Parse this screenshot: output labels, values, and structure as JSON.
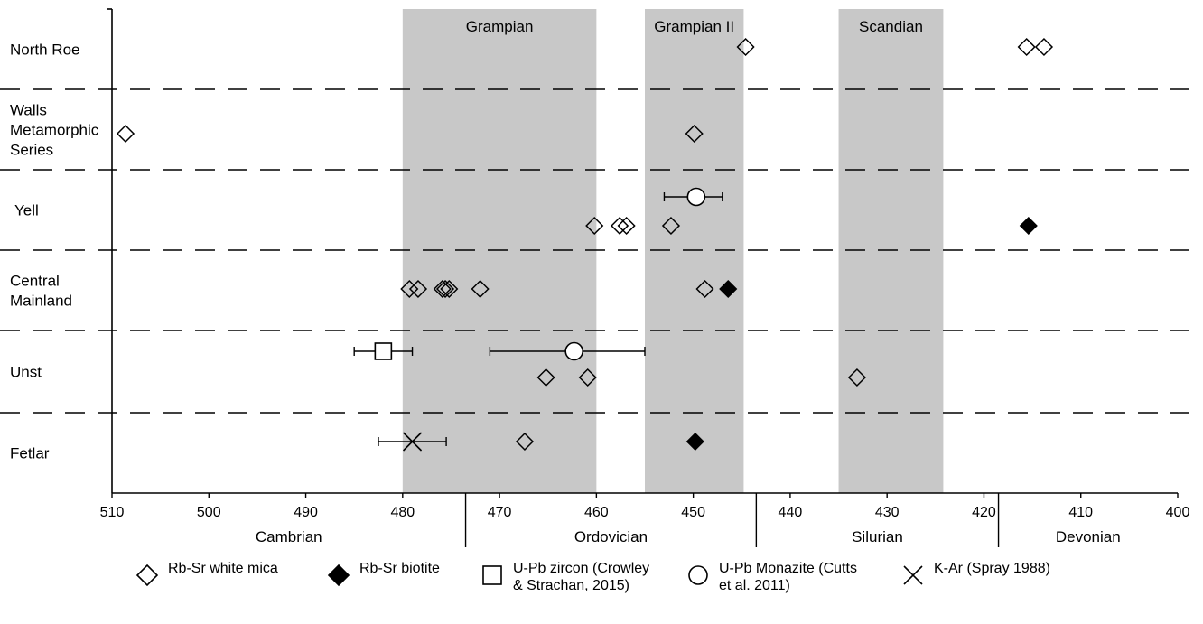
{
  "chart_data": {
    "type": "scatter",
    "x_axis": {
      "range": [
        510,
        400
      ],
      "reversed": true,
      "ticks": [
        510,
        500,
        490,
        480,
        470,
        460,
        450,
        440,
        430,
        420,
        410,
        400
      ]
    },
    "periods": [
      {
        "name": "Cambrian",
        "from": 510,
        "to": 473.5
      },
      {
        "name": "Ordovician",
        "from": 473.5,
        "to": 443.5
      },
      {
        "name": "Silurian",
        "from": 443.5,
        "to": 418.5
      },
      {
        "name": "Devonian",
        "from": 418.5,
        "to": 400
      }
    ],
    "events": [
      {
        "name": "Grampian",
        "from": 480,
        "to": 460
      },
      {
        "name": "Grampian II",
        "from": 455,
        "to": 444.8
      },
      {
        "name": "Scandian",
        "from": 435,
        "to": 424.2
      }
    ],
    "rows": [
      {
        "label": "North Roe"
      },
      {
        "label": "Walls\nMetamorphic\nSeries"
      },
      {
        "label": "Yell"
      },
      {
        "label": "Central\nMainland"
      },
      {
        "label": "Unst"
      },
      {
        "label": "Fetlar"
      }
    ],
    "series": [
      {
        "name": "Rb-Sr white mica",
        "marker": "diamond-open",
        "points": [
          {
            "row": 0,
            "lane": 0,
            "x": 444.6
          },
          {
            "row": 0,
            "lane": 0,
            "x": 415.6
          },
          {
            "row": 0,
            "lane": 0,
            "x": 413.8
          },
          {
            "row": 1,
            "lane": 0,
            "x": 508.6
          },
          {
            "row": 1,
            "lane": 0,
            "x": 449.9
          },
          {
            "row": 2,
            "lane": 1,
            "x": 460.2
          },
          {
            "row": 2,
            "lane": 1,
            "x": 457.6
          },
          {
            "row": 2,
            "lane": 1,
            "x": 456.9
          },
          {
            "row": 2,
            "lane": 1,
            "x": 452.3
          },
          {
            "row": 3,
            "lane": 0,
            "x": 479.3
          },
          {
            "row": 3,
            "lane": 0,
            "x": 478.4
          },
          {
            "row": 3,
            "lane": 0,
            "x": 475.9
          },
          {
            "row": 3,
            "lane": 0,
            "x": 475.6
          },
          {
            "row": 3,
            "lane": 0,
            "x": 475.2
          },
          {
            "row": 3,
            "lane": 0,
            "x": 472.0
          },
          {
            "row": 3,
            "lane": 0,
            "x": 448.8
          },
          {
            "row": 4,
            "lane": 1,
            "x": 465.2
          },
          {
            "row": 4,
            "lane": 1,
            "x": 460.9
          },
          {
            "row": 4,
            "lane": 1,
            "x": 433.1
          },
          {
            "row": 5,
            "lane": 0,
            "x": 467.4
          }
        ]
      },
      {
        "name": "Rb-Sr biotite",
        "marker": "diamond-filled",
        "points": [
          {
            "row": 2,
            "lane": 1,
            "x": 415.4
          },
          {
            "row": 3,
            "lane": 0,
            "x": 446.4
          },
          {
            "row": 5,
            "lane": 0,
            "x": 449.8
          }
        ]
      },
      {
        "name": "U-Pb zircon (Crowley\n& Strachan, 2015)",
        "marker": "square-open",
        "points": [
          {
            "row": 4,
            "lane": 0,
            "x": 482,
            "err_lo": 485,
            "err_hi": 479
          }
        ]
      },
      {
        "name": "U-Pb Monazite (Cutts\net al. 2011)",
        "marker": "circle-open",
        "points": [
          {
            "row": 2,
            "lane": 0,
            "x": 449.7,
            "err_lo": 453,
            "err_hi": 447
          },
          {
            "row": 4,
            "lane": 0,
            "x": 462.3,
            "err_lo": 471,
            "err_hi": 455
          }
        ]
      },
      {
        "name": "K-Ar (Spray 1988)",
        "marker": "x",
        "points": [
          {
            "row": 5,
            "lane": 0,
            "x": 479,
            "err_lo": 482.5,
            "err_hi": 475.5
          }
        ]
      }
    ]
  }
}
